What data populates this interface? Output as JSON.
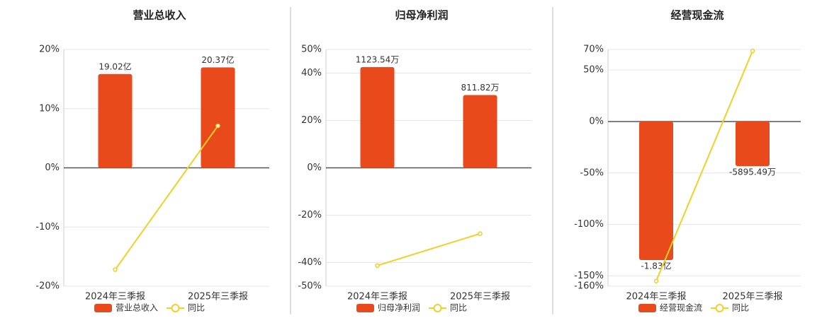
{
  "chart_data": [
    {
      "type": "bar",
      "title": "营业总收入",
      "categories": [
        "2024年三季报",
        "2025年三季报"
      ],
      "series": [
        {
          "name": "营业总收入",
          "color": "#e84a1c",
          "axis": "y2",
          "values": [
            1902000000,
            2037000000
          ],
          "value_labels": [
            "19.02亿",
            "20.37亿"
          ]
        },
        {
          "name": "同比",
          "type": "line",
          "color": "#f2d024",
          "values": [
            -17.2,
            7.1
          ]
        }
      ],
      "ylim": [
        -20,
        20
      ],
      "yticks": [
        {
          "value": -20,
          "label": "-20%"
        },
        {
          "value": -10,
          "label": "-10%"
        },
        {
          "value": 0,
          "label": "0%"
        },
        {
          "value": 10,
          "label": "10%"
        },
        {
          "value": 20,
          "label": "20%"
        }
      ],
      "y2lim": [
        -2400000000,
        2400000000
      ],
      "grid": true
    },
    {
      "type": "bar",
      "title": "归母净利润",
      "categories": [
        "2024年三季报",
        "2025年三季报"
      ],
      "series": [
        {
          "name": "归母净利润",
          "color": "#e84a1c",
          "axis": "y2",
          "values": [
            11235400,
            8118200
          ],
          "value_labels": [
            "1123.54万",
            "811.82万"
          ]
        },
        {
          "name": "同比",
          "type": "line",
          "color": "#f2d024",
          "values": [
            -41.3,
            -27.8
          ]
        }
      ],
      "ylim": [
        -50,
        50
      ],
      "yticks": [
        {
          "value": -50,
          "label": "-50%"
        },
        {
          "value": -40,
          "label": "-40%"
        },
        {
          "value": -20,
          "label": "-20%"
        },
        {
          "value": 0,
          "label": "0%"
        },
        {
          "value": 20,
          "label": "20%"
        },
        {
          "value": 40,
          "label": "40%"
        },
        {
          "value": 50,
          "label": "50%"
        }
      ],
      "y2lim": [
        -13200000,
        13200000
      ],
      "grid": true
    },
    {
      "type": "bar",
      "title": "经营现金流",
      "categories": [
        "2024年三季报",
        "2025年三季报"
      ],
      "series": [
        {
          "name": "经营现金流",
          "color": "#e84a1c",
          "axis": "y2",
          "values": [
            -183000000,
            -58954900
          ],
          "value_labels": [
            "-1.83亿",
            "-5895.49万"
          ]
        },
        {
          "name": "同比",
          "type": "line",
          "color": "#f2d024",
          "values": [
            -155,
            68.6
          ]
        }
      ],
      "ylim": [
        -160,
        70
      ],
      "yticks": [
        {
          "value": -160,
          "label": "-160%"
        },
        {
          "value": -150,
          "label": "-150%"
        },
        {
          "value": -100,
          "label": "-100%"
        },
        {
          "value": -50,
          "label": "-50%"
        },
        {
          "value": 0,
          "label": "0%"
        },
        {
          "value": 50,
          "label": "50%"
        },
        {
          "value": 70,
          "label": "70%"
        }
      ],
      "y2lim": [
        -217500000,
        95200000
      ],
      "grid": true
    }
  ]
}
